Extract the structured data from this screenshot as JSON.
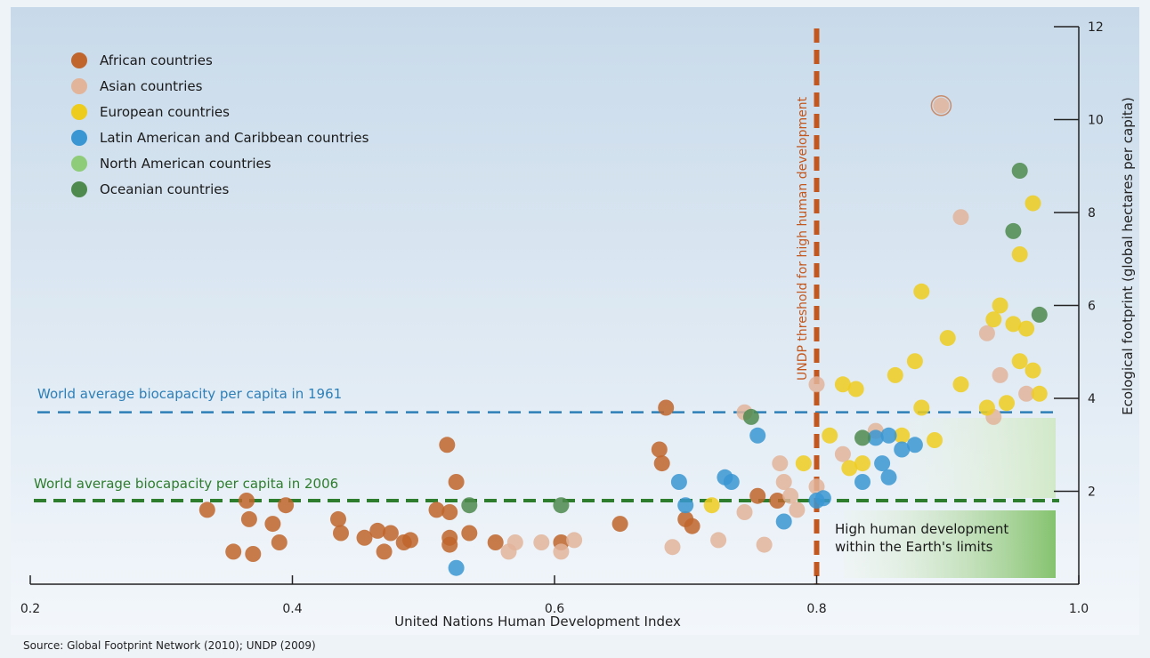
{
  "chart_data": {
    "type": "scatter",
    "xlabel": "United Nations Human Development Index",
    "ylabel": "Ecological footprint (global hectares per capita)",
    "xlim": [
      0.2,
      1.0
    ],
    "ylim": [
      0,
      12
    ],
    "x_ticks": [
      "0.2",
      "0.4",
      "0.6",
      "0.8",
      "1.0"
    ],
    "y_ticks": [
      "2",
      "4",
      "6",
      "8",
      "10",
      "12"
    ],
    "y_axis_side": "right",
    "legend_position": "top-left",
    "source": "Source: Global Footprint Network (2010); UNDP (2009)",
    "reference_lines": [
      {
        "label": "World average biocapacity per capita in 1961",
        "orientation": "horizontal",
        "value": 3.7,
        "color": "#2d7fb8"
      },
      {
        "label": "World average biocapacity per capita in 2006",
        "orientation": "horizontal",
        "value": 1.8,
        "color": "#2e7d2e"
      },
      {
        "label": "UNDP threshold for high human development",
        "orientation": "vertical",
        "value": 0.8,
        "color": "#c2581f"
      }
    ],
    "zone": {
      "label_line1": "High human development",
      "label_line2": "within the Earth's limits",
      "x_range": [
        0.8,
        0.98
      ],
      "y_range": [
        0,
        1.8
      ]
    },
    "series": [
      {
        "name": "African countries",
        "color": "#c0652c",
        "points": [
          [
            0.335,
            1.6
          ],
          [
            0.355,
            0.7
          ],
          [
            0.365,
            1.8
          ],
          [
            0.367,
            1.4
          ],
          [
            0.37,
            0.65
          ],
          [
            0.385,
            1.3
          ],
          [
            0.39,
            0.9
          ],
          [
            0.395,
            1.7
          ],
          [
            0.435,
            1.4
          ],
          [
            0.437,
            1.1
          ],
          [
            0.455,
            1.0
          ],
          [
            0.465,
            1.15
          ],
          [
            0.47,
            0.7
          ],
          [
            0.475,
            1.1
          ],
          [
            0.485,
            0.9
          ],
          [
            0.49,
            0.95
          ],
          [
            0.51,
            1.6
          ],
          [
            0.518,
            3.0
          ],
          [
            0.52,
            1.0
          ],
          [
            0.52,
            0.85
          ],
          [
            0.52,
            1.55
          ],
          [
            0.525,
            2.2
          ],
          [
            0.535,
            1.1
          ],
          [
            0.555,
            0.9
          ],
          [
            0.605,
            0.9
          ],
          [
            0.65,
            1.3
          ],
          [
            0.68,
            2.9
          ],
          [
            0.682,
            2.6
          ],
          [
            0.685,
            3.8
          ],
          [
            0.7,
            1.4
          ],
          [
            0.705,
            1.25
          ],
          [
            0.755,
            1.9
          ],
          [
            0.77,
            1.8
          ]
        ]
      },
      {
        "name": "Asian countries",
        "color": "#e2b49a",
        "points": [
          [
            0.565,
            0.7
          ],
          [
            0.57,
            0.9
          ],
          [
            0.59,
            0.9
          ],
          [
            0.605,
            0.7
          ],
          [
            0.615,
            0.95
          ],
          [
            0.69,
            0.8
          ],
          [
            0.725,
            0.95
          ],
          [
            0.745,
            1.55
          ],
          [
            0.745,
            3.7
          ],
          [
            0.76,
            0.85
          ],
          [
            0.772,
            2.6
          ],
          [
            0.775,
            2.2
          ],
          [
            0.78,
            1.9
          ],
          [
            0.785,
            1.6
          ],
          [
            0.8,
            4.3
          ],
          [
            0.8,
            2.1
          ],
          [
            0.82,
            2.8
          ],
          [
            0.845,
            3.3
          ],
          [
            0.895,
            10.3
          ],
          [
            0.91,
            7.9
          ],
          [
            0.93,
            5.4
          ],
          [
            0.935,
            3.6
          ],
          [
            0.94,
            4.5
          ],
          [
            0.96,
            4.1
          ]
        ]
      },
      {
        "name": "European countries",
        "color": "#eecc1e",
        "points": [
          [
            0.72,
            1.7
          ],
          [
            0.79,
            2.6
          ],
          [
            0.81,
            3.2
          ],
          [
            0.82,
            4.3
          ],
          [
            0.825,
            2.5
          ],
          [
            0.83,
            4.2
          ],
          [
            0.835,
            2.6
          ],
          [
            0.86,
            4.5
          ],
          [
            0.865,
            3.2
          ],
          [
            0.875,
            4.8
          ],
          [
            0.88,
            3.8
          ],
          [
            0.88,
            6.3
          ],
          [
            0.89,
            3.1
          ],
          [
            0.9,
            5.3
          ],
          [
            0.91,
            4.3
          ],
          [
            0.93,
            3.8
          ],
          [
            0.935,
            5.7
          ],
          [
            0.94,
            6.0
          ],
          [
            0.945,
            3.9
          ],
          [
            0.95,
            5.6
          ],
          [
            0.955,
            4.8
          ],
          [
            0.955,
            7.1
          ],
          [
            0.96,
            5.5
          ],
          [
            0.965,
            8.2
          ],
          [
            0.965,
            4.6
          ],
          [
            0.97,
            4.1
          ]
        ]
      },
      {
        "name": "Latin American and Caribbean countries",
        "color": "#3a96d2",
        "points": [
          [
            0.525,
            0.35
          ],
          [
            0.695,
            2.2
          ],
          [
            0.7,
            1.7
          ],
          [
            0.73,
            2.3
          ],
          [
            0.735,
            2.2
          ],
          [
            0.755,
            3.2
          ],
          [
            0.775,
            1.35
          ],
          [
            0.8,
            1.8
          ],
          [
            0.805,
            1.85
          ],
          [
            0.835,
            2.2
          ],
          [
            0.845,
            3.15
          ],
          [
            0.85,
            2.6
          ],
          [
            0.855,
            3.2
          ],
          [
            0.855,
            2.3
          ],
          [
            0.865,
            2.9
          ],
          [
            0.875,
            3.0
          ]
        ]
      },
      {
        "name": "North American countries",
        "color": "#8fcc7a",
        "points": []
      },
      {
        "name": "Oceanian countries",
        "color": "#4e8a4e",
        "points": [
          [
            0.535,
            1.7
          ],
          [
            0.605,
            1.7
          ],
          [
            0.75,
            3.6
          ],
          [
            0.835,
            3.15
          ],
          [
            0.955,
            8.9
          ],
          [
            0.95,
            7.6
          ],
          [
            0.97,
            5.8
          ]
        ]
      }
    ]
  }
}
